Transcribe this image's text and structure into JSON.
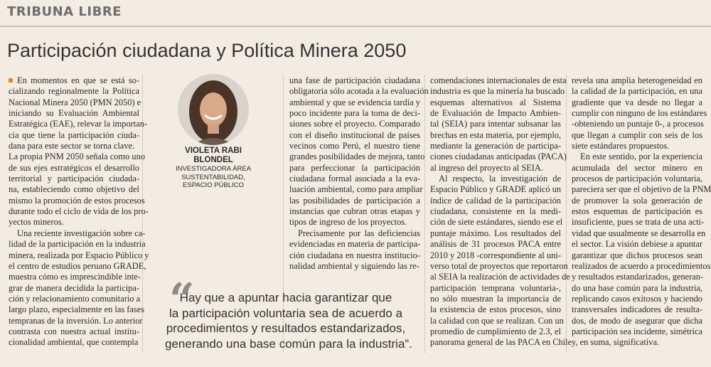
{
  "header": {
    "section": "TRIBUNA LIBRE",
    "title": "Participación ciudadana y Política Minera 2050"
  },
  "author": {
    "name": [
      "VIOLETA RABI",
      "BLONDEL"
    ],
    "role": [
      "INVESTIGADORA ÁREA",
      "SUSTENTABILIDAD,",
      "ESPACIO PÚBLICO"
    ]
  },
  "columns": [
    [
      [
        "En momentos en que se está so-",
        "cializando regionalmente la Política",
        "Nacional Minera 2050 (PMN 2050) e",
        "iniciando su Evaluación Ambiental",
        "Estratégica (EAE), relevar la importan-",
        "cia que tiene la participación ciuda-",
        "dana para este sector se torna clave."
      ],
      [
        "La propia PNM 2050 señala como uno",
        "de sus ejes estratégicos el desarrollo",
        "territorial y participación ciudada-",
        "na, estableciendo como objetivo del",
        "mismo la promoción de estos procesos",
        "durante todo el ciclo de vida de los pro-",
        "yectos mineros."
      ],
      [
        "Una reciente investigación sobre ca-",
        "lidad de la participación en la industria",
        "minera, realizada por Espacio Público y",
        "el centro de estudios peruano GRADE,",
        "muestra cómo es imprescindible inte-",
        "grar de manera decidida la participa-",
        "ción y relacionamiento comunitario a",
        "largo plazo, especialmente en las fases",
        "tempranas de la inversión. Lo anterior",
        "contrasta con nuestra actual institu-",
        "cionalidad ambiental, que contempla"
      ]
    ],
    [
      [
        "una fase de participación ciudadana",
        "obligatoria sólo acotada a la evaluación",
        "ambiental y que se evidencia tardía y",
        "poco incidente para la toma de deci-",
        "siones sobre el proyecto. Comparado",
        "con el diseño institucional de países",
        "vecinos como Perú, el nuestro tiene",
        "grandes posibilidades de mejora, tanto",
        "para perfeccionar la participación",
        "ciudadana formal asociada a la eva-",
        "luación ambiental, como para ampliar",
        "las posibilidades de participación a",
        "instancias que cubran otras etapas y",
        "tipos de ingreso de los proyectos."
      ],
      [
        "Precisamente por las deficiencias",
        "evidenciadas en materia de participa-",
        "ción ciudadana en nuestra institucio-",
        "nalidad ambiental y siguiendo las re-"
      ]
    ],
    [
      [
        "comendaciones internacionales de esta",
        "industria es que la minería ha buscado",
        "esquemas alternativos al Sistema",
        "de Evaluación de Impacto Ambien-",
        "tal (SEIA) para intentar subsanar las",
        "brechas en esta materia, por ejemplo,",
        "mediante la generación de participa-",
        "ciones ciudadanas anticipadas (PACA)",
        "al ingreso del proyecto al SEIA."
      ],
      [
        "Al respecto, la investigación de",
        "Espacio Público y GRADE aplicó un",
        "índice de calidad de la participación",
        "ciudadana, consistente en la medi-",
        "ción de siete estándares, siendo ese el",
        "puntaje máximo. Los resultados del",
        "análisis de 31 procesos PACA entre",
        "2010 y 2018 -correspondiente al uni-",
        "verso total de proyectos que reportaron",
        "al SEIA la realización de actividades de",
        "participación temprana voluntaria-,",
        "no sólo muestran la importancia de",
        "la existencia de estos procesos, sino",
        "la calidad con que se realizan. Con un",
        "promedio de cumplimiento de 2.3, el",
        "panorama general de las PACA en Chile"
      ]
    ],
    [
      [
        "revela una amplia heterogeneidad en",
        "la calidad de la participación, en una",
        "gradiente que va desde no llegar a",
        "cumplir con ninguno de los estándares",
        "-obteniendo un puntaje 0-, a procesos",
        "que llegan a cumplir con seis de los",
        "siete estándares propuestos."
      ],
      [
        "En este sentido, por la experiencia",
        "acumulada del sector minero en",
        "procesos de participación voluntaria,",
        "pareciera ser que el objetivo de la PNM",
        "de promover la sola generación de",
        "estos esquemas de participación es",
        "insuficiente, pues se trata de una acti-",
        "vidad que usualmente se desarrolla en",
        "el sector. La visión debiese a apuntar",
        "garantizar que dichos procesos sean",
        "realizados de acuerdo a procedimientos",
        "y resultados estandarizados, generan-",
        "do una base común para la industria,",
        "replicando casos exitosos y haciendo",
        "transversales indicadores de resulta-",
        "dos, de modo de asegurar que dicha",
        "participación sea incidente, simétrica",
        "y, en suma, significativa."
      ]
    ]
  ],
  "quote": [
    "Hay que a apuntar hacia garantizar que",
    "la participación voluntaria sea de acuerdo a",
    "procedimientos y resultados estandarizados,",
    "generando una base común para la industria”."
  ]
}
